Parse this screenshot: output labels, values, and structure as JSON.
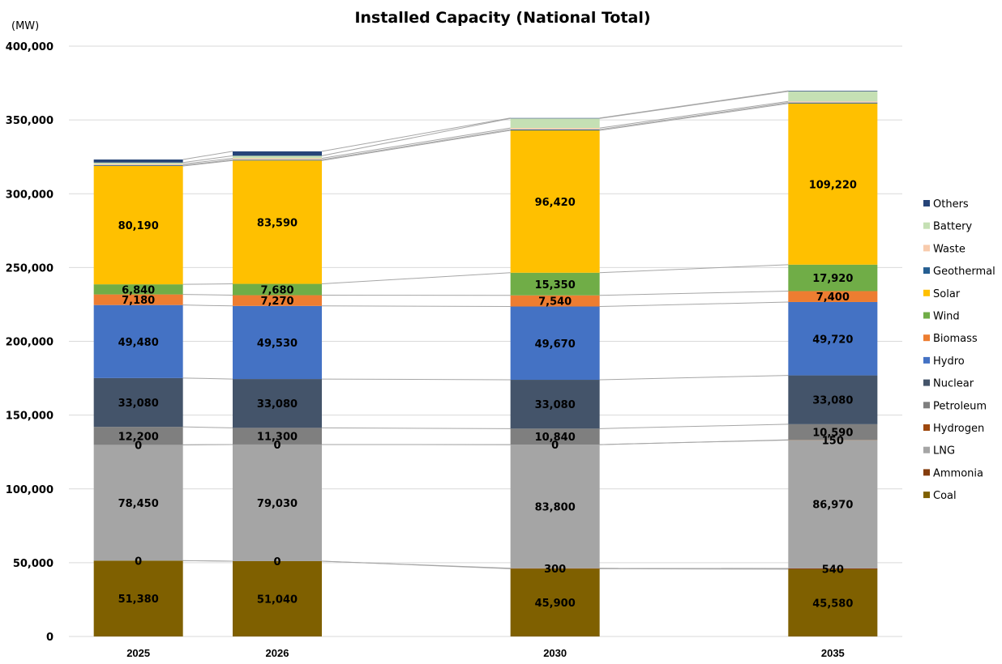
{
  "chart_data": {
    "type": "bar",
    "stacked": true,
    "title": "Installed Capacity (National Total)",
    "ylabel": "(MW)",
    "xlabel": "",
    "ylim": [
      0,
      400000
    ],
    "yticks": [
      0,
      50000,
      100000,
      150000,
      200000,
      250000,
      300000,
      350000,
      400000
    ],
    "ytick_labels": [
      "0",
      "50,000",
      "100,000",
      "150,000",
      "200,000",
      "250,000",
      "300,000",
      "350,000",
      "400,000"
    ],
    "grid": true,
    "legend_position": "right",
    "categories": [
      "2025",
      "2026",
      "2030",
      "2035"
    ],
    "category_slots": [
      0,
      1,
      3,
      5
    ],
    "slot_count": 6,
    "series_lines": true,
    "series": [
      {
        "name": "Coal",
        "color": "#7f6000",
        "values": [
          51380,
          51040,
          45900,
          45580
        ],
        "labels": [
          "51,380",
          "51,040",
          "45,900",
          "45,580"
        ]
      },
      {
        "name": "Ammonia",
        "color": "#843c0c",
        "values": [
          0,
          0,
          300,
          540
        ],
        "labels": [
          "0",
          "0",
          "300",
          "540"
        ]
      },
      {
        "name": "LNG",
        "color": "#a5a5a5",
        "values": [
          78450,
          79030,
          83800,
          86970
        ],
        "labels": [
          "78,450",
          "79,030",
          "83,800",
          "86,970"
        ]
      },
      {
        "name": "Hydrogen",
        "color": "#9e480e",
        "values": [
          0,
          0,
          0,
          150
        ],
        "labels": [
          "0",
          "0",
          "0",
          "150"
        ]
      },
      {
        "name": "Petroleum",
        "color": "#7f7f7f",
        "values": [
          12200,
          11300,
          10840,
          10590
        ],
        "labels": [
          "12,200",
          "11,300",
          "10,840",
          "10,590"
        ]
      },
      {
        "name": "Nuclear",
        "color": "#44546a",
        "values": [
          33080,
          33080,
          33080,
          33080
        ],
        "labels": [
          "33,080",
          "33,080",
          "33,080",
          "33,080"
        ]
      },
      {
        "name": "Hydro",
        "color": "#4472c4",
        "values": [
          49480,
          49530,
          49670,
          49720
        ],
        "labels": [
          "49,480",
          "49,530",
          "49,670",
          "49,720"
        ]
      },
      {
        "name": "Biomass",
        "color": "#ed7d31",
        "values": [
          7180,
          7270,
          7540,
          7400
        ],
        "labels": [
          "7,180",
          "7,270",
          "7,540",
          "7,400"
        ]
      },
      {
        "name": "Wind",
        "color": "#70ad47",
        "values": [
          6840,
          7680,
          15350,
          17920
        ],
        "labels": [
          "6,840",
          "7,680",
          "15,350",
          "17,920"
        ]
      },
      {
        "name": "Solar",
        "color": "#ffc000",
        "values": [
          80190,
          83590,
          96420,
          109220
        ],
        "labels": [
          "80,190",
          "83,590",
          "96,420",
          "109,220"
        ]
      },
      {
        "name": "Geothermal",
        "color": "#255e91",
        "values": [
          500,
          500,
          600,
          600
        ],
        "labels": null
      },
      {
        "name": "Waste",
        "color": "#f8cbad",
        "values": [
          800,
          1000,
          1000,
          800
        ],
        "labels": null
      },
      {
        "name": "Battery",
        "color": "#c5e0b4",
        "values": [
          1000,
          1700,
          6500,
          6800
        ],
        "labels": null
      },
      {
        "name": "Others",
        "color": "#264478",
        "values": [
          2100,
          3000,
          300,
          400
        ],
        "labels": null
      }
    ],
    "legend_order": [
      "Others",
      "Battery",
      "Waste",
      "Geothermal",
      "Solar",
      "Wind",
      "Biomass",
      "Hydro",
      "Nuclear",
      "Petroleum",
      "Hydrogen",
      "LNG",
      "Ammonia",
      "Coal"
    ]
  }
}
